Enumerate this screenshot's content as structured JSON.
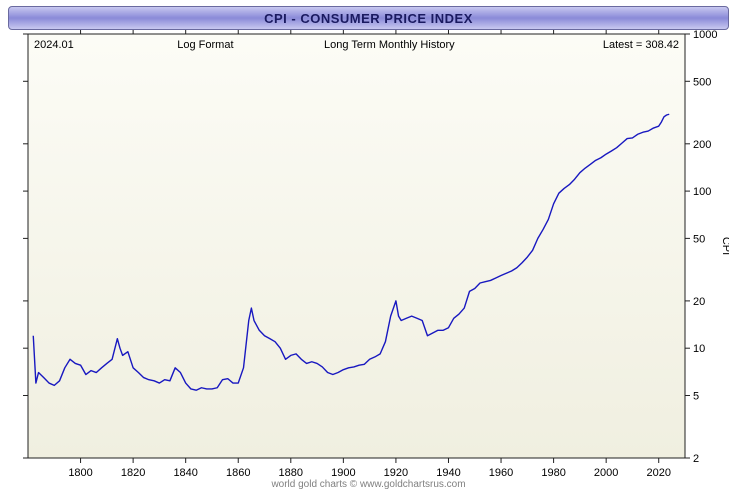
{
  "title": "CPI - CONSUMER PRICE INDEX",
  "header": {
    "date": "2024.01",
    "format_label": "Log Format",
    "subtitle": "Long Term Monthly History",
    "latest_label": "Latest = 308.42"
  },
  "axes": {
    "y_label": "CPI",
    "y_scale": "log",
    "y_min": 2,
    "y_max": 1000,
    "y_ticks": [
      2,
      5,
      10,
      20,
      50,
      100,
      200,
      500,
      1000
    ],
    "x_min": 1780,
    "x_max": 2030,
    "x_ticks": [
      1800,
      1820,
      1840,
      1860,
      1880,
      1900,
      1920,
      1940,
      1960,
      1980,
      2000,
      2020
    ],
    "tick_fontsize": 11,
    "label_fontsize": 11,
    "header_fontsize": 11
  },
  "style": {
    "titlebar_gradient": [
      "#c8c8f0",
      "#8a8ad8",
      "#c8c8f0"
    ],
    "plot_bg_top": "#fcfcf6",
    "plot_bg_bottom": "#f0efe0",
    "plot_border": "#202020",
    "line_color": "#1818c0",
    "line_width": 1.4,
    "caption_color": "#808080"
  },
  "caption": "world gold charts © www.goldchartsrus.com",
  "series": {
    "type": "line",
    "points": [
      [
        1782,
        12
      ],
      [
        1783,
        6
      ],
      [
        1784,
        7
      ],
      [
        1786,
        6.5
      ],
      [
        1788,
        6
      ],
      [
        1790,
        5.8
      ],
      [
        1792,
        6.2
      ],
      [
        1794,
        7.5
      ],
      [
        1796,
        8.5
      ],
      [
        1798,
        8
      ],
      [
        1800,
        7.8
      ],
      [
        1802,
        6.8
      ],
      [
        1804,
        7.2
      ],
      [
        1806,
        7.0
      ],
      [
        1808,
        7.5
      ],
      [
        1810,
        8.0
      ],
      [
        1812,
        8.5
      ],
      [
        1814,
        11.5
      ],
      [
        1815,
        10
      ],
      [
        1816,
        9
      ],
      [
        1818,
        9.5
      ],
      [
        1820,
        7.5
      ],
      [
        1822,
        7.0
      ],
      [
        1824,
        6.5
      ],
      [
        1826,
        6.3
      ],
      [
        1828,
        6.2
      ],
      [
        1830,
        6.0
      ],
      [
        1832,
        6.3
      ],
      [
        1834,
        6.2
      ],
      [
        1836,
        7.5
      ],
      [
        1838,
        7.0
      ],
      [
        1840,
        6.0
      ],
      [
        1842,
        5.5
      ],
      [
        1844,
        5.4
      ],
      [
        1846,
        5.6
      ],
      [
        1848,
        5.5
      ],
      [
        1850,
        5.5
      ],
      [
        1852,
        5.6
      ],
      [
        1854,
        6.3
      ],
      [
        1856,
        6.4
      ],
      [
        1858,
        6.0
      ],
      [
        1860,
        6.0
      ],
      [
        1862,
        7.5
      ],
      [
        1864,
        15
      ],
      [
        1865,
        18
      ],
      [
        1866,
        15
      ],
      [
        1868,
        13
      ],
      [
        1870,
        12
      ],
      [
        1872,
        11.5
      ],
      [
        1874,
        11
      ],
      [
        1876,
        10
      ],
      [
        1878,
        8.5
      ],
      [
        1880,
        9
      ],
      [
        1882,
        9.2
      ],
      [
        1884,
        8.5
      ],
      [
        1886,
        8.0
      ],
      [
        1888,
        8.2
      ],
      [
        1890,
        8.0
      ],
      [
        1892,
        7.6
      ],
      [
        1894,
        7.0
      ],
      [
        1896,
        6.8
      ],
      [
        1898,
        7.0
      ],
      [
        1900,
        7.3
      ],
      [
        1902,
        7.5
      ],
      [
        1904,
        7.6
      ],
      [
        1906,
        7.8
      ],
      [
        1908,
        7.9
      ],
      [
        1910,
        8.5
      ],
      [
        1912,
        8.8
      ],
      [
        1914,
        9.2
      ],
      [
        1916,
        11
      ],
      [
        1918,
        16
      ],
      [
        1920,
        20
      ],
      [
        1921,
        16
      ],
      [
        1922,
        15
      ],
      [
        1924,
        15.5
      ],
      [
        1926,
        16
      ],
      [
        1928,
        15.5
      ],
      [
        1930,
        15
      ],
      [
        1932,
        12
      ],
      [
        1934,
        12.5
      ],
      [
        1936,
        13
      ],
      [
        1938,
        13
      ],
      [
        1940,
        13.5
      ],
      [
        1942,
        15.5
      ],
      [
        1944,
        16.5
      ],
      [
        1946,
        18
      ],
      [
        1948,
        23
      ],
      [
        1950,
        24
      ],
      [
        1952,
        26
      ],
      [
        1954,
        26.5
      ],
      [
        1956,
        27
      ],
      [
        1958,
        28
      ],
      [
        1960,
        29
      ],
      [
        1962,
        30
      ],
      [
        1964,
        31
      ],
      [
        1966,
        32.5
      ],
      [
        1968,
        35
      ],
      [
        1970,
        38
      ],
      [
        1972,
        42
      ],
      [
        1974,
        50
      ],
      [
        1976,
        57
      ],
      [
        1978,
        66
      ],
      [
        1980,
        83
      ],
      [
        1982,
        97
      ],
      [
        1984,
        104
      ],
      [
        1986,
        110
      ],
      [
        1988,
        119
      ],
      [
        1990,
        131
      ],
      [
        1992,
        140
      ],
      [
        1994,
        148
      ],
      [
        1996,
        157
      ],
      [
        1998,
        163
      ],
      [
        2000,
        172
      ],
      [
        2002,
        180
      ],
      [
        2004,
        189
      ],
      [
        2006,
        202
      ],
      [
        2008,
        216
      ],
      [
        2010,
        218
      ],
      [
        2012,
        230
      ],
      [
        2014,
        237
      ],
      [
        2016,
        241
      ],
      [
        2018,
        252
      ],
      [
        2020,
        259
      ],
      [
        2021,
        275
      ],
      [
        2022,
        297
      ],
      [
        2023,
        305
      ],
      [
        2024,
        308.42
      ]
    ]
  }
}
